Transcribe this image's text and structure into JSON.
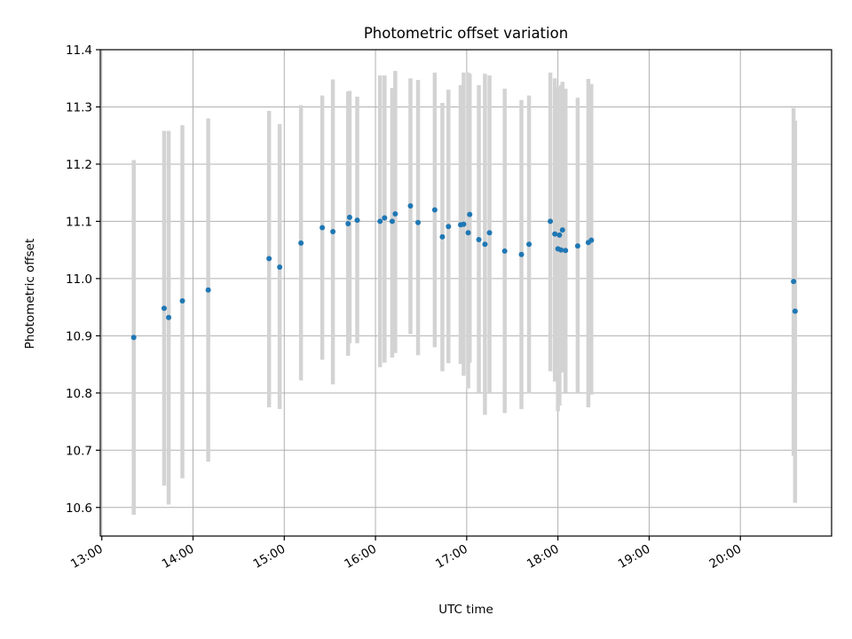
{
  "chart_data": {
    "type": "scatter",
    "title": "Photometric offset variation",
    "xlabel": "UTC time",
    "ylabel": "Photometric offset",
    "x_ticks": [
      "13:00",
      "14:00",
      "15:00",
      "16:00",
      "17:00",
      "18:00",
      "19:00",
      "20:00"
    ],
    "y_ticks": [
      "10.6",
      "10.7",
      "10.8",
      "10.9",
      "11.0",
      "11.1",
      "11.2",
      "11.3",
      "11.4"
    ],
    "xlim": [
      "12:59",
      "21:00"
    ],
    "ylim": [
      10.55,
      11.4
    ],
    "grid": true,
    "legend": "none",
    "colors": {
      "points": "#1f77b4",
      "errorbars": "#d3d3d3"
    },
    "series": [
      {
        "x": [
          "13:21",
          "13:41",
          "13:44",
          "13:53",
          "14:10",
          "14:50",
          "14:57",
          "15:11",
          "15:25",
          "15:32",
          "15:42",
          "15:43",
          "15:48",
          "16:03",
          "16:06",
          "16:11",
          "16:13",
          "16:23",
          "16:28",
          "16:39",
          "16:44",
          "16:48",
          "16:56",
          "16:58",
          "17:01",
          "17:02",
          "17:08",
          "17:12",
          "17:15",
          "17:25",
          "17:36",
          "17:41",
          "17:55",
          "17:58",
          "18:00",
          "18:01",
          "18:02",
          "18:03",
          "18:05",
          "18:13",
          "18:20",
          "18:22",
          "20:35",
          "20:36"
        ],
        "y": [
          10.897,
          10.948,
          10.932,
          10.961,
          10.98,
          11.035,
          11.02,
          11.062,
          11.089,
          11.082,
          11.096,
          11.107,
          11.102,
          11.1,
          11.106,
          11.1,
          11.113,
          11.127,
          11.098,
          11.12,
          11.073,
          11.091,
          11.094,
          11.095,
          11.08,
          11.112,
          11.068,
          11.06,
          11.08,
          11.048,
          11.042,
          11.06,
          11.1,
          11.078,
          11.052,
          11.076,
          11.05,
          11.085,
          11.049,
          11.057,
          11.063,
          11.067,
          10.995,
          10.943
        ],
        "lower": [
          10.587,
          10.638,
          10.605,
          10.651,
          10.68,
          10.775,
          10.772,
          10.822,
          10.858,
          10.815,
          10.865,
          10.887,
          10.887,
          10.845,
          10.853,
          10.862,
          10.87,
          10.903,
          10.866,
          10.88,
          10.838,
          10.852,
          10.851,
          10.83,
          10.808,
          10.853,
          10.8,
          10.762,
          10.8,
          10.765,
          10.772,
          10.799,
          10.838,
          10.82,
          10.768,
          10.778,
          10.836,
          10.836,
          10.801,
          10.8,
          10.775,
          10.797,
          10.69,
          10.608
        ],
        "upper": [
          11.207,
          11.258,
          11.258,
          11.268,
          11.28,
          11.293,
          11.27,
          11.303,
          11.32,
          11.348,
          11.327,
          11.328,
          11.318,
          11.355,
          11.355,
          11.333,
          11.363,
          11.35,
          11.347,
          11.36,
          11.307,
          11.33,
          11.338,
          11.36,
          11.36,
          11.358,
          11.338,
          11.358,
          11.355,
          11.332,
          11.312,
          11.32,
          11.36,
          11.35,
          11.335,
          11.334,
          11.338,
          11.344,
          11.332,
          11.316,
          11.349,
          11.34,
          11.298,
          11.276
        ]
      }
    ]
  }
}
